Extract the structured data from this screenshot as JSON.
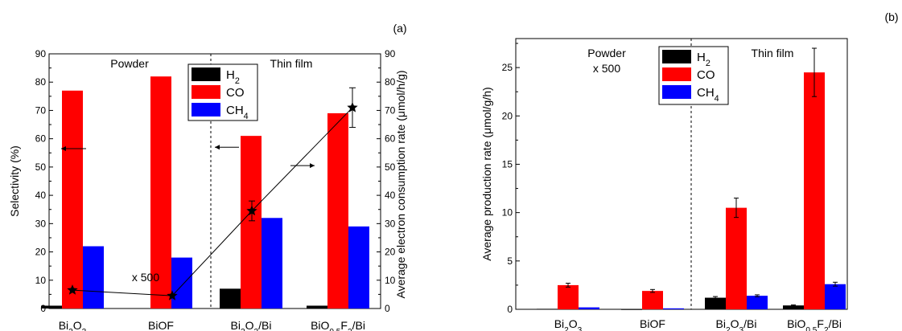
{
  "chart_data": [
    {
      "panel_label": "(a)",
      "type": "bar",
      "categories": [
        "Bi2O3",
        "BiOF",
        "Bi2O3/Bi",
        "BiO0.5F2/Bi"
      ],
      "categories_display": [
        [
          {
            "t": "Bi"
          },
          {
            "t": "2",
            "sub": true
          },
          {
            "t": "O"
          },
          {
            "t": "3",
            "sub": true
          }
        ],
        [
          {
            "t": "BiOF"
          }
        ],
        [
          {
            "t": "Bi"
          },
          {
            "t": "2",
            "sub": true
          },
          {
            "t": "O"
          },
          {
            "t": "3",
            "sub": true
          },
          {
            "t": "/Bi"
          }
        ],
        [
          {
            "t": "BiO"
          },
          {
            "t": "0.5",
            "sub": true
          },
          {
            "t": "F"
          },
          {
            "t": "2",
            "sub": true
          },
          {
            "t": "/Bi"
          }
        ]
      ],
      "series": [
        {
          "name": "H2",
          "name_display": [
            {
              "t": "H"
            },
            {
              "t": "2",
              "sub": true
            }
          ],
          "color": "#000000",
          "values": [
            1,
            0,
            7,
            1
          ]
        },
        {
          "name": "CO",
          "name_display": [
            {
              "t": "CO"
            }
          ],
          "color": "#ff0000",
          "values": [
            77,
            82,
            61,
            69
          ]
        },
        {
          "name": "CH4",
          "name_display": [
            {
              "t": "CH"
            },
            {
              "t": "4",
              "sub": true
            }
          ],
          "color": "#0000ff",
          "values": [
            22,
            18,
            32,
            29
          ]
        }
      ],
      "ylabel": "Selectivity (%)",
      "ylim": [
        0,
        90
      ],
      "yticks": [
        0,
        10,
        20,
        30,
        40,
        50,
        60,
        70,
        80,
        90
      ],
      "y2label": "Average electron consumption rate (μmol/h/g)",
      "y2lim": [
        0,
        90
      ],
      "y2ticks": [
        0,
        10,
        20,
        30,
        40,
        50,
        60,
        70,
        80,
        90
      ],
      "electron_rate": {
        "values": [
          6.5,
          4.5,
          34.5,
          71
        ],
        "errors": [
          null,
          null,
          3.5,
          7
        ]
      },
      "region_labels": [
        "Powder",
        "Thin film"
      ],
      "annotation": "x 500",
      "legend_position": "top-center",
      "grid": false
    },
    {
      "panel_label": "(b)",
      "type": "bar",
      "categories": [
        "Bi2O3",
        "BiOF",
        "Bi2O3/Bi",
        "BiO0.5F2/Bi"
      ],
      "categories_display": [
        [
          {
            "t": "Bi"
          },
          {
            "t": "2",
            "sub": true
          },
          {
            "t": "O"
          },
          {
            "t": "3",
            "sub": true
          }
        ],
        [
          {
            "t": "BiOF"
          }
        ],
        [
          {
            "t": "Bi"
          },
          {
            "t": "2",
            "sub": true
          },
          {
            "t": "O"
          },
          {
            "t": "3",
            "sub": true
          },
          {
            "t": "/Bi"
          }
        ],
        [
          {
            "t": "BiO"
          },
          {
            "t": "0.5",
            "sub": true
          },
          {
            "t": "F"
          },
          {
            "t": "2",
            "sub": true
          },
          {
            "t": "/Bi"
          }
        ]
      ],
      "series": [
        {
          "name": "H2",
          "name_display": [
            {
              "t": "H"
            },
            {
              "t": "2",
              "sub": true
            }
          ],
          "color": "#000000",
          "values": [
            0.05,
            0.02,
            1.2,
            0.4
          ],
          "errors": [
            0,
            0,
            0.12,
            0.05
          ]
        },
        {
          "name": "CO",
          "name_display": [
            {
              "t": "CO"
            }
          ],
          "color": "#ff0000",
          "values": [
            2.5,
            1.9,
            10.5,
            24.5
          ],
          "errors": [
            0.2,
            0.15,
            1.0,
            2.5
          ]
        },
        {
          "name": "CH4",
          "name_display": [
            {
              "t": "CH"
            },
            {
              "t": "4",
              "sub": true
            }
          ],
          "color": "#0000ff",
          "values": [
            0.2,
            0.1,
            1.4,
            2.6
          ],
          "errors": [
            0,
            0,
            0.1,
            0.2
          ]
        }
      ],
      "ylabel": "Average production rate (μmol/g/h)",
      "ylim": [
        0,
        28
      ],
      "yticks": [
        0,
        5,
        10,
        15,
        20,
        25
      ],
      "region_labels": [
        "Powder",
        "Thin film"
      ],
      "annotation": "x 500",
      "legend_position": "top-center",
      "grid": false
    }
  ]
}
